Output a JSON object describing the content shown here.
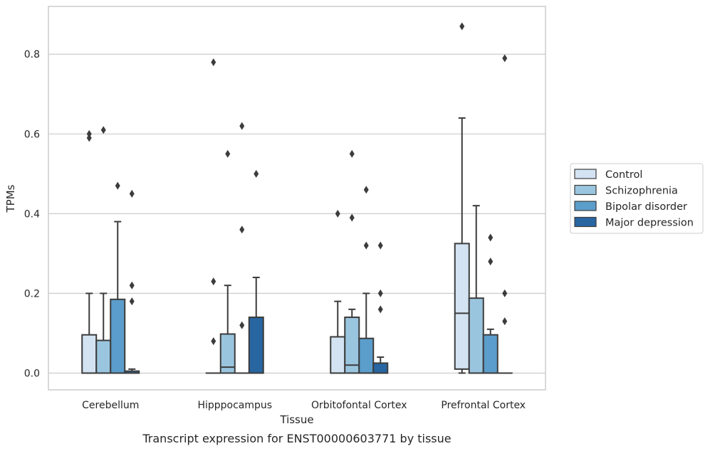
{
  "chart_data": {
    "type": "box",
    "caption": "Transcript expression for ENST00000603771 by tissue",
    "xlabel": "Tissue",
    "ylabel": "TPMs",
    "ylim": [
      -0.042,
      0.92
    ],
    "yticks": [
      0.0,
      0.2,
      0.4,
      0.6,
      0.8
    ],
    "grid": true,
    "legend_position": "right",
    "categories": [
      "Cerebellum",
      "Hipppocampus",
      "Orbitofontal Cortex",
      "Prefrontal Cortex"
    ],
    "series": [
      {
        "name": "Control",
        "color": "#d3e3f2",
        "boxes": [
          {
            "category": "Cerebellum",
            "q1": 0.0,
            "median": 0.0,
            "q3": 0.096,
            "whislo": 0.0,
            "whishi": 0.2,
            "fliers": [
              0.59,
              0.6
            ]
          },
          {
            "category": "Hipppocampus",
            "q1": 0.0,
            "median": 0.0,
            "q3": 0.0,
            "whislo": 0.0,
            "whishi": 0.0,
            "fliers": [
              0.08,
              0.23,
              0.78
            ]
          },
          {
            "category": "Orbitofontal Cortex",
            "q1": 0.0,
            "median": 0.0,
            "q3": 0.091,
            "whislo": 0.0,
            "whishi": 0.18,
            "fliers": [
              0.4
            ]
          },
          {
            "category": "Prefrontal Cortex",
            "q1": 0.01,
            "median": 0.15,
            "q3": 0.325,
            "whislo": 0.0,
            "whishi": 0.64,
            "fliers": [
              0.87
            ]
          }
        ]
      },
      {
        "name": "Schizophrenia",
        "color": "#9ac5df",
        "boxes": [
          {
            "category": "Cerebellum",
            "q1": 0.0,
            "median": 0.0,
            "q3": 0.082,
            "whislo": 0.0,
            "whishi": 0.2,
            "fliers": [
              0.61
            ]
          },
          {
            "category": "Hipppocampus",
            "q1": 0.0,
            "median": 0.015,
            "q3": 0.098,
            "whislo": 0.0,
            "whishi": 0.22,
            "fliers": [
              0.55
            ]
          },
          {
            "category": "Orbitofontal Cortex",
            "q1": 0.0,
            "median": 0.02,
            "q3": 0.14,
            "whislo": 0.0,
            "whishi": 0.16,
            "fliers": [
              0.39,
              0.55
            ]
          },
          {
            "category": "Prefrontal Cortex",
            "q1": 0.0,
            "median": 0.0,
            "q3": 0.188,
            "whislo": 0.0,
            "whishi": 0.42,
            "fliers": []
          }
        ]
      },
      {
        "name": "Bipolar disorder",
        "color": "#5b9dcb",
        "boxes": [
          {
            "category": "Cerebellum",
            "q1": 0.0,
            "median": 0.0,
            "q3": 0.185,
            "whislo": 0.0,
            "whishi": 0.38,
            "fliers": [
              0.47
            ]
          },
          {
            "category": "Hipppocampus",
            "q1": 0.0,
            "median": 0.0,
            "q3": 0.0,
            "whislo": 0.0,
            "whishi": 0.0,
            "fliers": [
              0.12,
              0.36,
              0.62
            ]
          },
          {
            "category": "Orbitofontal Cortex",
            "q1": 0.0,
            "median": 0.0,
            "q3": 0.087,
            "whislo": 0.0,
            "whishi": 0.2,
            "fliers": [
              0.32,
              0.46
            ]
          },
          {
            "category": "Prefrontal Cortex",
            "q1": 0.0,
            "median": 0.0,
            "q3": 0.096,
            "whislo": 0.0,
            "whishi": 0.11,
            "fliers": [
              0.28,
              0.34
            ]
          }
        ]
      },
      {
        "name": "Major depression",
        "color": "#2866a2",
        "boxes": [
          {
            "category": "Cerebellum",
            "q1": 0.0,
            "median": 0.0,
            "q3": 0.005,
            "whislo": 0.0,
            "whishi": 0.01,
            "fliers": [
              0.18,
              0.22,
              0.45
            ]
          },
          {
            "category": "Hipppocampus",
            "q1": 0.0,
            "median": 0.0,
            "q3": 0.14,
            "whislo": 0.0,
            "whishi": 0.24,
            "fliers": [
              0.5
            ]
          },
          {
            "category": "Orbitofontal Cortex",
            "q1": 0.0,
            "median": 0.0,
            "q3": 0.025,
            "whislo": 0.0,
            "whishi": 0.04,
            "fliers": [
              0.16,
              0.2,
              0.32
            ]
          },
          {
            "category": "Prefrontal Cortex",
            "q1": 0.0,
            "median": 0.0,
            "q3": 0.0,
            "whislo": 0.0,
            "whishi": 0.0,
            "fliers": [
              0.13,
              0.2,
              0.79
            ]
          }
        ]
      }
    ]
  }
}
